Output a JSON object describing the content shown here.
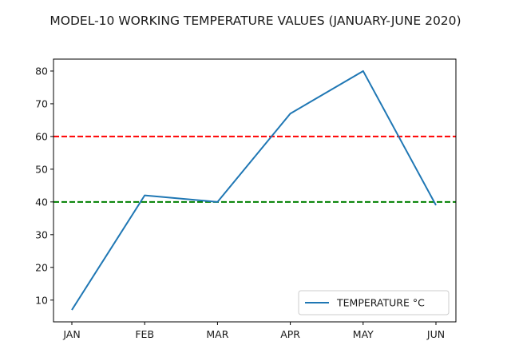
{
  "chart_data": {
    "type": "line",
    "title": "MODEL-10 WORKING TEMPERATURE VALUES (JANUARY-JUNE 2020)",
    "xlabel": "",
    "ylabel": "",
    "categories": [
      "JAN",
      "FEB",
      "MAR",
      "APR",
      "MAY",
      "JUN"
    ],
    "series": [
      {
        "name": "TEMPERATURE °C",
        "values": [
          7,
          42,
          40,
          67,
          80,
          39
        ],
        "color": "#1f77b4"
      }
    ],
    "reference_lines": [
      {
        "y": 60,
        "color": "#ff0000",
        "style": "dashed"
      },
      {
        "y": 40,
        "color": "#008000",
        "style": "dashed"
      }
    ],
    "yticks": [
      10,
      20,
      30,
      40,
      50,
      60,
      70,
      80
    ],
    "ylim": [
      3.35,
      83.65
    ],
    "grid": false,
    "legend_position": "lower right"
  }
}
